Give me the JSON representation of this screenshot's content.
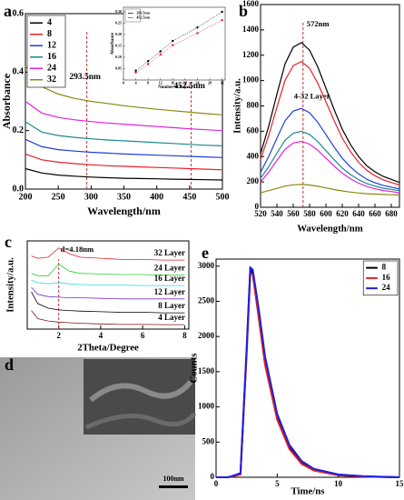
{
  "chart_data": [
    {
      "type": "line",
      "panel": "a",
      "x_label": "Wavelength/nm",
      "y_label": "Absorbance",
      "x": [
        200,
        225,
        250,
        275,
        300,
        325,
        350,
        375,
        400,
        425,
        450,
        475,
        500
      ],
      "xlim": [
        200,
        500
      ],
      "xticks": [
        200,
        250,
        300,
        350,
        400,
        450,
        500
      ],
      "ylim": [
        0,
        0.6
      ],
      "yticks": [
        {
          "value": 0,
          "label": "0.0"
        },
        0.2,
        0.4,
        0.6
      ],
      "legend": "upper left",
      "vlines": [
        293.5,
        452.5
      ],
      "annotations": [
        "293.5nm",
        "452.5nm"
      ],
      "series": [
        {
          "name": "4",
          "color": "#000000",
          "values": [
            0.07,
            0.055,
            0.048,
            0.044,
            0.041,
            0.039,
            0.037,
            0.036,
            0.035,
            0.034,
            0.033,
            0.032,
            0.031
          ]
        },
        {
          "name": "8",
          "color": "#e8202a",
          "values": [
            0.12,
            0.1,
            0.092,
            0.087,
            0.083,
            0.08,
            0.078,
            0.076,
            0.074,
            0.072,
            0.07,
            0.068,
            0.066
          ]
        },
        {
          "name": "12",
          "color": "#1f3fd6",
          "values": [
            0.17,
            0.145,
            0.135,
            0.13,
            0.126,
            0.123,
            0.12,
            0.118,
            0.116,
            0.114,
            0.112,
            0.11,
            0.108
          ]
        },
        {
          "name": "16",
          "color": "#1a8a8a",
          "values": [
            0.23,
            0.195,
            0.183,
            0.177,
            0.172,
            0.168,
            0.165,
            0.162,
            0.159,
            0.156,
            0.153,
            0.15,
            0.148
          ]
        },
        {
          "name": "24",
          "color": "#e020e0",
          "values": [
            0.3,
            0.26,
            0.245,
            0.237,
            0.231,
            0.226,
            0.222,
            0.218,
            0.214,
            0.21,
            0.206,
            0.203,
            0.2
          ]
        },
        {
          "name": "32",
          "color": "#8a8a10",
          "values": [
            0.42,
            0.35,
            0.325,
            0.31,
            0.3,
            0.293,
            0.285,
            0.279,
            0.273,
            0.268,
            0.263,
            0.258,
            0.254
          ]
        }
      ]
    },
    {
      "type": "line",
      "x_label": "Number of Layer",
      "y_label": "Absorbance",
      "markers": true,
      "x": [
        4,
        8,
        12,
        16,
        24,
        32
      ],
      "xlim": [
        0,
        33
      ],
      "xticks": [
        0,
        4,
        8,
        12,
        16,
        20,
        24,
        28,
        32
      ],
      "ylim": [
        0,
        0.32
      ],
      "yticks": [
        0.05,
        {
          "value": 0.1,
          "label": "0.10"
        },
        0.15,
        {
          "value": 0.2,
          "label": "0.20"
        },
        0.25,
        {
          "value": 0.3,
          "label": "0.30"
        }
      ],
      "legend": "upper left",
      "series": [
        {
          "name": "293.5nm",
          "color": "#000000",
          "values": [
            0.041,
            0.083,
            0.126,
            0.172,
            0.231,
            0.3
          ]
        },
        {
          "name": "452.5nm",
          "color": "#e8202a",
          "values": [
            0.033,
            0.07,
            0.112,
            0.153,
            0.206,
            0.263
          ]
        }
      ]
    },
    {
      "type": "line",
      "panel": "b",
      "x_label": "Wavelength/nm",
      "y_label": "Intensity/a.u.",
      "x": [
        520,
        530,
        540,
        550,
        560,
        570,
        580,
        590,
        600,
        610,
        620,
        630,
        640,
        650,
        660,
        670,
        680,
        690
      ],
      "xlim": [
        520,
        690
      ],
      "xticks": [
        520,
        540,
        560,
        580,
        600,
        620,
        640,
        660,
        680
      ],
      "ylim": [
        0,
        1600
      ],
      "yticks": [
        0,
        200,
        400,
        600,
        800,
        1000,
        1200,
        1400,
        1600
      ],
      "vlines": [
        572
      ],
      "annotations": [
        "572nm",
        "4-32 Layer"
      ],
      "series": [
        {
          "color": "#000000",
          "values": [
            424,
            640,
            892,
            1132,
            1264,
            1300,
            1240,
            1108,
            940,
            772,
            616,
            496,
            400,
            328,
            280,
            244,
            220,
            196
          ]
        },
        {
          "color": "#e8202a",
          "values": [
            376,
            567,
            790,
            1002,
            1118,
            1150,
            1097,
            980,
            832,
            684,
            546,
            440,
            355,
            291,
            249,
            217,
            196,
            175
          ]
        },
        {
          "color": "#1f3fd6",
          "values": [
            276,
            401,
            545,
            683,
            759,
            780,
            746,
            670,
            573,
            476,
            387,
            318,
            263,
            221,
            194,
            173,
            159,
            145
          ]
        },
        {
          "color": "#1a8a8a",
          "values": [
            228,
            320,
            427,
            529,
            585,
            600,
            575,
            518,
            447,
            376,
            309,
            258,
            218,
            187,
            167,
            151,
            141,
            131
          ]
        },
        {
          "color": "#e020e0",
          "values": [
            199,
            278,
            370,
            458,
            507,
            520,
            498,
            450,
            388,
            326,
            269,
            225,
            190,
            164,
            146,
            133,
            124,
            115
          ]
        },
        {
          "color": "#8a8a10",
          "values": [
            114,
            131,
            149,
            167,
            177,
            180,
            176,
            166,
            153,
            140,
            129,
            120,
            113,
            107,
            104,
            101,
            99,
            97
          ]
        }
      ]
    },
    {
      "type": "line",
      "panel": "c",
      "x_label": "2Theta/Degree",
      "y_label": "Intensity/a.u.",
      "x": [
        0.7,
        1,
        1.5,
        2,
        2.5,
        3,
        4,
        5,
        6,
        7,
        8
      ],
      "xlim": [
        0.5,
        8.2
      ],
      "xticks": [
        2,
        4,
        6,
        8
      ],
      "ylim": [
        0,
        7.6
      ],
      "series_labels": true,
      "vlines": [
        2
      ],
      "annotations": [
        "d=4.18nm"
      ],
      "series": [
        {
          "name": "32 Layer",
          "color": "#e02020",
          "values": [
            6.3,
            6.1,
            6.2,
            7.0,
            6.5,
            6.2,
            6.1,
            6.0,
            6.0,
            5.95,
            5.95
          ]
        },
        {
          "name": "24 Layer",
          "color": "#30d030",
          "values": [
            4.8,
            4.6,
            4.6,
            5.6,
            5.0,
            4.8,
            4.75,
            4.7,
            4.7,
            4.65,
            4.65
          ]
        },
        {
          "name": "16 Layer",
          "color": "#30d8e0",
          "values": [
            4.2,
            4.0,
            3.9,
            4.0,
            3.9,
            3.85,
            3.8,
            3.8,
            3.75,
            3.75,
            3.75
          ]
        },
        {
          "name": "12 Layer",
          "color": "#7a30c8",
          "values": [
            3.6,
            3.0,
            2.8,
            2.75,
            2.7,
            2.7,
            2.65,
            2.6,
            2.6,
            2.6,
            2.6
          ]
        },
        {
          "name": "8 Layer",
          "color": "#000000",
          "values": [
            3.2,
            2.2,
            1.8,
            1.65,
            1.6,
            1.55,
            1.5,
            1.45,
            1.45,
            1.4,
            1.4
          ]
        },
        {
          "name": "4 Layer",
          "color": "#801818",
          "values": [
            1.6,
            0.9,
            0.7,
            0.6,
            0.55,
            0.5,
            0.45,
            0.4,
            0.4,
            0.38,
            0.38
          ]
        }
      ]
    },
    {
      "type": "line",
      "panel": "e",
      "x_label": "Time/ns",
      "y_label": "Counts",
      "x": [
        0,
        1,
        2,
        2.5,
        2.8,
        3,
        3.5,
        4,
        5,
        6,
        7,
        8,
        10,
        12,
        15
      ],
      "xlim": [
        0,
        15
      ],
      "xticks": [
        0,
        5,
        10,
        15
      ],
      "ylim": [
        0,
        3100
      ],
      "yticks": [
        0,
        500,
        1000,
        1500,
        2000,
        2500,
        3000
      ],
      "legend": "upper right",
      "series": [
        {
          "name": "8",
          "color": "#000000",
          "values": [
            0,
            0,
            50,
            1800,
            2950,
            2900,
            2300,
            1650,
            850,
            420,
            200,
            100,
            30,
            10,
            0
          ]
        },
        {
          "name": "16",
          "color": "#e02020",
          "values": [
            0,
            0,
            40,
            1750,
            2900,
            2880,
            2250,
            1600,
            820,
            400,
            190,
            95,
            30,
            10,
            0
          ]
        },
        {
          "name": "24",
          "color": "#2020e0",
          "values": [
            0,
            0,
            60,
            1850,
            2980,
            2950,
            2380,
            1720,
            900,
            460,
            230,
            120,
            40,
            15,
            0
          ]
        }
      ]
    }
  ],
  "image": {
    "panel": "d",
    "scale_bar": "100nm"
  }
}
